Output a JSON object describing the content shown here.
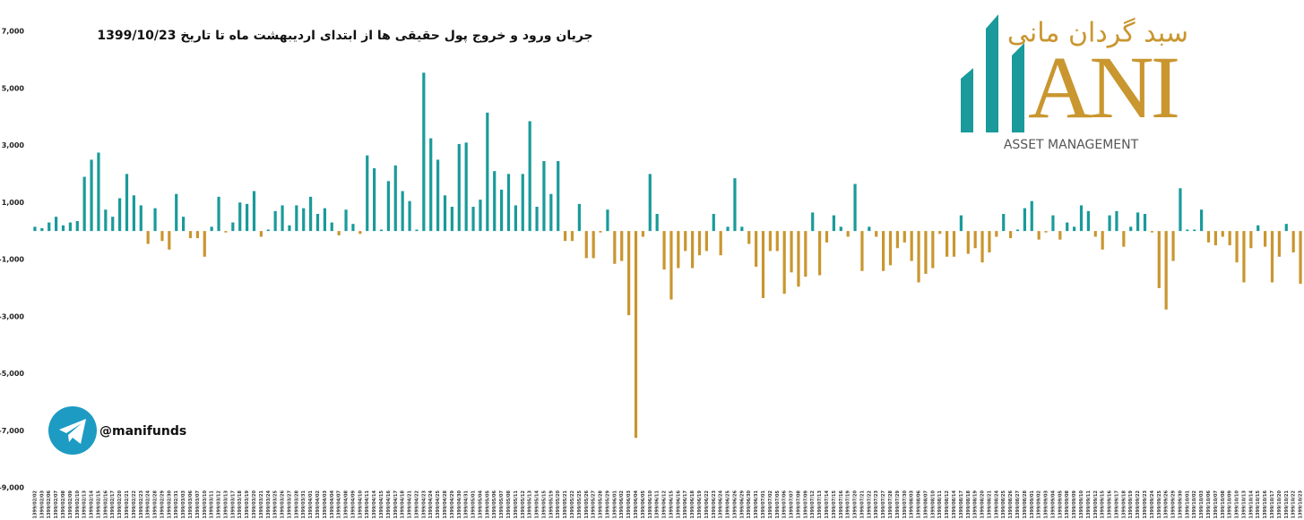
{
  "chart_data": {
    "type": "bar",
    "title": "جریان ورود و خروج پول حقیقی ها از ابتدای اردیبهشت ماه تا تاریخ 1399/10/23",
    "categories": [
      "1399/02/02",
      "1399/02/03",
      "1399/02/06",
      "1399/02/07",
      "1399/02/08",
      "1399/02/09",
      "1399/02/10",
      "1399/02/13",
      "1399/02/14",
      "1399/02/15",
      "1399/02/16",
      "1399/02/17",
      "1399/02/20",
      "1399/02/21",
      "1399/02/22",
      "1399/02/23",
      "1399/02/24",
      "1399/02/28",
      "1399/02/29",
      "1399/02/30",
      "1399/02/31",
      "1399/03/03",
      "1399/03/06",
      "1399/03/07",
      "1399/03/10",
      "1399/03/11",
      "1399/03/12",
      "1399/03/13",
      "1399/03/17",
      "1399/03/18",
      "1399/03/19",
      "1399/03/20",
      "1399/03/21",
      "1399/03/24",
      "1399/03/25",
      "1399/03/26",
      "1399/03/27",
      "1399/03/28",
      "1399/03/31",
      "1399/04/01",
      "1399/04/02",
      "1399/04/03",
      "1399/04/04",
      "1399/04/07",
      "1399/04/08",
      "1399/04/09",
      "1399/04/10",
      "1399/04/11",
      "1399/04/14",
      "1399/04/15",
      "1399/04/16",
      "1399/04/17",
      "1399/04/18",
      "1399/04/21",
      "1399/04/22",
      "1399/04/23",
      "1399/04/24",
      "1399/04/25",
      "1399/04/28",
      "1399/04/29",
      "1399/04/30",
      "1399/04/31",
      "1399/05/01",
      "1399/05/04",
      "1399/05/05",
      "1399/05/06",
      "1399/05/07",
      "1399/05/08",
      "1399/05/11",
      "1399/05/12",
      "1399/05/13",
      "1399/05/14",
      "1399/05/15",
      "1399/05/19",
      "1399/05/20",
      "1399/05/21",
      "1399/05/22",
      "1399/05/25",
      "1399/05/26",
      "1399/05/27",
      "1399/05/28",
      "1399/05/29",
      "1399/06/01",
      "1399/06/02",
      "1399/06/03",
      "1399/06/04",
      "1399/06/05",
      "1399/06/10",
      "1399/06/11",
      "1399/06/12",
      "1399/06/15",
      "1399/06/16",
      "1399/06/17",
      "1399/06/18",
      "1399/06/19",
      "1399/06/22",
      "1399/06/23",
      "1399/06/24",
      "1399/06/25",
      "1399/06/26",
      "1399/06/29",
      "1399/06/30",
      "1399/06/31",
      "1399/07/01",
      "1399/07/02",
      "1399/07/05",
      "1399/07/06",
      "1399/07/07",
      "1399/07/08",
      "1399/07/09",
      "1399/07/12",
      "1399/07/13",
      "1399/07/14",
      "1399/07/15",
      "1399/07/16",
      "1399/07/19",
      "1399/07/20",
      "1399/07/21",
      "1399/07/22",
      "1399/07/23",
      "1399/07/27",
      "1399/07/28",
      "1399/07/29",
      "1399/07/30",
      "1399/08/03",
      "1399/08/06",
      "1399/08/07",
      "1399/08/10",
      "1399/08/11",
      "1399/08/12",
      "1399/08/14",
      "1399/08/17",
      "1399/08/18",
      "1399/08/19",
      "1399/08/20",
      "1399/08/21",
      "1399/08/24",
      "1399/08/25",
      "1399/08/26",
      "1399/08/27",
      "1399/08/28",
      "1399/09/01",
      "1399/09/02",
      "1399/09/03",
      "1399/09/04",
      "1399/09/05",
      "1399/09/08",
      "1399/09/09",
      "1399/09/10",
      "1399/09/11",
      "1399/09/12",
      "1399/09/15",
      "1399/09/16",
      "1399/09/17",
      "1399/09/18",
      "1399/09/19",
      "1399/09/22",
      "1399/09/23",
      "1399/09/24",
      "1399/09/25",
      "1399/09/26",
      "1399/09/29",
      "1399/09/30",
      "1399/10/01",
      "1399/10/02",
      "1399/10/03",
      "1399/10/06",
      "1399/10/07",
      "1399/10/08",
      "1399/10/09",
      "1399/10/10",
      "1399/10/13",
      "1399/10/14",
      "1399/10/15",
      "1399/10/16",
      "1399/10/17",
      "1399/10/20",
      "1399/10/21",
      "1399/10/22",
      "1399/10/23"
    ],
    "values": [
      150,
      100,
      300,
      500,
      200,
      300,
      350,
      1900,
      2500,
      2750,
      750,
      500,
      1150,
      2000,
      1250,
      900,
      -450,
      800,
      -350,
      -650,
      1300,
      500,
      -250,
      -250,
      -900,
      150,
      1200,
      -50,
      300,
      1000,
      950,
      1400,
      -200,
      50,
      700,
      900,
      200,
      900,
      800,
      1200,
      600,
      800,
      300,
      -150,
      750,
      250,
      -100,
      2650,
      2200,
      50,
      1750,
      2300,
      1400,
      1050,
      50,
      5550,
      3250,
      2500,
      1250,
      850,
      3050,
      3100,
      850,
      1100,
      4150,
      2100,
      1450,
      2000,
      900,
      2000,
      3850,
      850,
      2450,
      1300,
      2450,
      -350,
      -350,
      950,
      -950,
      -950,
      -50,
      750,
      -1150,
      -1050,
      -2950,
      -7250,
      -200,
      2000,
      600,
      -1350,
      -2400,
      -1300,
      -700,
      -1300,
      -850,
      -700,
      600,
      -850,
      150,
      1850,
      150,
      -450,
      -1250,
      -2350,
      -700,
      -700,
      -2200,
      -1450,
      -1950,
      -1600,
      650,
      -1550,
      -400,
      550,
      150,
      -200,
      1650,
      -1400,
      150,
      -200,
      -1400,
      -1200,
      -600,
      -400,
      -1050,
      -1800,
      -1500,
      -1300,
      -100,
      -900,
      -900,
      550,
      -800,
      -600,
      -1100,
      -750,
      -200,
      600,
      -250,
      50,
      800,
      1050,
      -300,
      -50,
      550,
      -300,
      300,
      150,
      900,
      700,
      -200,
      -650,
      550,
      700,
      -550,
      150,
      650,
      600,
      -50,
      -2000,
      -2750,
      -1050,
      1500,
      50,
      50,
      750,
      -400,
      -500,
      -200,
      -500,
      -1100,
      -1800,
      -600,
      200,
      -550,
      -1800,
      -900,
      250,
      -750,
      -1850
    ],
    "positive_color": "#1a9a9a",
    "negative_color": "#c9962f",
    "ylim": [
      -9000,
      7000
    ],
    "yticks": [
      {
        "value": 7000,
        "label": "7,000"
      },
      {
        "value": 5000,
        "label": "5,000"
      },
      {
        "value": 3000,
        "label": "3,000"
      },
      {
        "value": 1000,
        "label": "1,000"
      },
      {
        "value": -1000,
        "label": "-1,000"
      },
      {
        "value": -3000,
        "label": "-3,000"
      },
      {
        "value": -5000,
        "label": "-5,000"
      },
      {
        "value": -7000,
        "label": "-7,000"
      },
      {
        "value": -9000,
        "label": "-9,000"
      }
    ],
    "grid": false
  },
  "logo": {
    "name": "سبد گردان مانی",
    "letters": "ANI",
    "tagline": "ASSET MANAGEMENT"
  },
  "telegram": "@manifunds"
}
